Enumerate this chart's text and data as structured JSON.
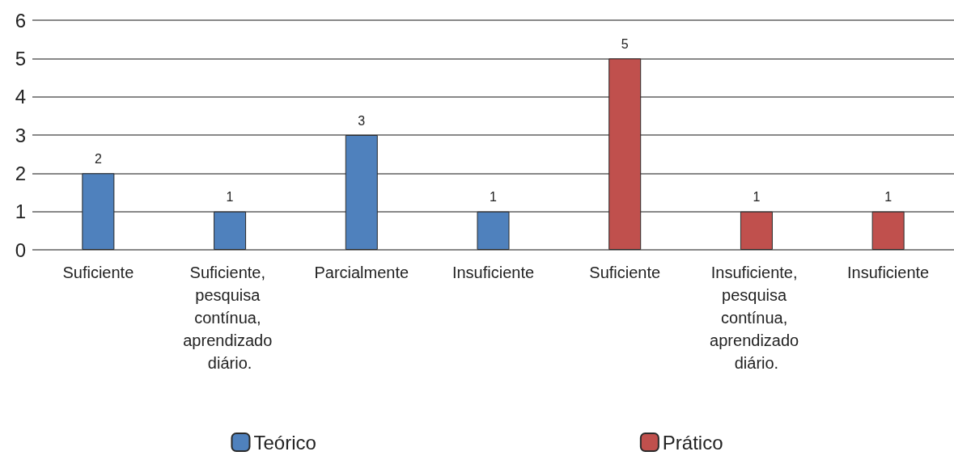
{
  "chart_data": {
    "type": "bar",
    "categories": [
      "Suficiente",
      "Suficiente, pesquisa contínua, aprendizado diário.",
      "Parcialmente",
      "Insuficiente",
      "Suficiente",
      "Insuficiente, pesquisa contínua, aprendizado diário.",
      "Insuficiente"
    ],
    "series": [
      {
        "name": "Teórico",
        "color": "#4f81bd",
        "values": [
          2,
          1,
          3,
          1,
          null,
          null,
          null
        ]
      },
      {
        "name": "Prático",
        "color": "#c0504d",
        "values": [
          null,
          null,
          null,
          null,
          5,
          1,
          1
        ]
      }
    ],
    "ylim": [
      0,
      6
    ],
    "yticks": [
      0,
      1,
      2,
      3,
      4,
      5,
      6
    ],
    "grid": "y",
    "legend": "bottom",
    "data_labels": true
  }
}
